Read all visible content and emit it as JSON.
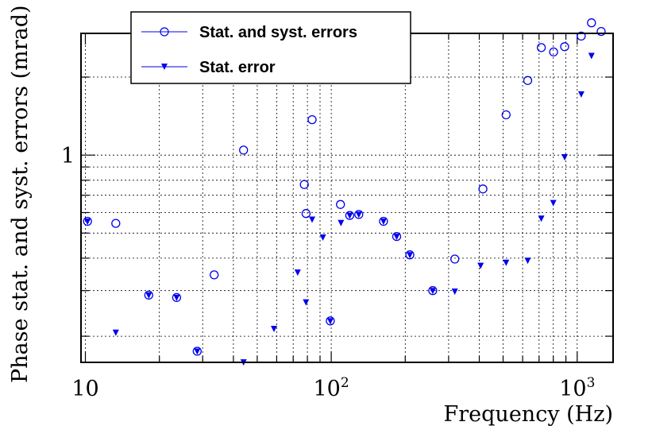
{
  "chart_data": {
    "type": "scatter",
    "xlabel": "Frequency (Hz)",
    "ylabel": "Phase stat. and syst. errors (mrad)",
    "xscale": "log",
    "yscale": "log",
    "xlim": [
      9.6,
      1400
    ],
    "ylim": [
      0.1585,
      2.95
    ],
    "grid": true,
    "legend_position": "top-left",
    "x_tick_labels": [
      {
        "value": 10,
        "label": "10"
      },
      {
        "value": 100,
        "label": "10",
        "exp": "2"
      },
      {
        "value": 1000,
        "label": "10",
        "exp": "3"
      }
    ],
    "y_tick_labels": [
      {
        "value": 1,
        "label": "1"
      }
    ],
    "colors": {
      "series": "#0000ee",
      "axis": "#000000",
      "grid": "#000000"
    },
    "series": [
      {
        "name": "Stat. and syst. errors",
        "marker": "open-circle",
        "points": [
          [
            10.2,
            0.555
          ],
          [
            13.3,
            0.545
          ],
          [
            18.1,
            0.288
          ],
          [
            23.5,
            0.282
          ],
          [
            28.5,
            0.175
          ],
          [
            33.4,
            0.345
          ],
          [
            44.0,
            1.045
          ],
          [
            59.0,
            1.98
          ],
          [
            72.8,
            2.03
          ],
          [
            77.7,
            0.77
          ],
          [
            79.0,
            0.595
          ],
          [
            83.6,
            1.37
          ],
          [
            92.3,
            2.22
          ],
          [
            99.1,
            0.229
          ],
          [
            109.0,
            0.645
          ],
          [
            118.9,
            0.585
          ],
          [
            129.4,
            0.59
          ],
          [
            163.1,
            0.555
          ],
          [
            184.5,
            0.485
          ],
          [
            208.8,
            0.412
          ],
          [
            258.7,
            0.3
          ],
          [
            318.0,
            0.397
          ],
          [
            413.8,
            0.74
          ],
          [
            514.3,
            1.43
          ],
          [
            629.3,
            1.94
          ],
          [
            714.7,
            2.6
          ],
          [
            801.9,
            2.5
          ],
          [
            889.3,
            2.62
          ],
          [
            1039.0,
            2.88
          ],
          [
            1144.0,
            3.24
          ],
          [
            1252.0,
            3.0
          ]
        ]
      },
      {
        "name": "Stat. error",
        "marker": "filled-triangle-down",
        "points": [
          [
            10.2,
            0.555
          ],
          [
            13.3,
            0.207
          ],
          [
            18.1,
            0.288
          ],
          [
            23.5,
            0.282
          ],
          [
            28.5,
            0.175
          ],
          [
            44.0,
            0.159
          ],
          [
            58.5,
            0.214
          ],
          [
            73.0,
            0.353
          ],
          [
            78.9,
            0.271
          ],
          [
            83.6,
            0.565
          ],
          [
            92.5,
            0.482
          ],
          [
            99.1,
            0.229
          ],
          [
            109.5,
            0.548
          ],
          [
            118.9,
            0.585
          ],
          [
            129.4,
            0.59
          ],
          [
            163.1,
            0.555
          ],
          [
            184.5,
            0.485
          ],
          [
            208.8,
            0.412
          ],
          [
            258.7,
            0.3
          ],
          [
            318.0,
            0.298
          ],
          [
            405.0,
            0.375
          ],
          [
            514.3,
            0.385
          ],
          [
            629.3,
            0.392
          ],
          [
            714.7,
            0.57
          ],
          [
            800.0,
            0.655
          ],
          [
            889.3,
            0.984
          ],
          [
            1039.0,
            1.72
          ],
          [
            1144.0,
            2.42
          ]
        ]
      }
    ]
  }
}
